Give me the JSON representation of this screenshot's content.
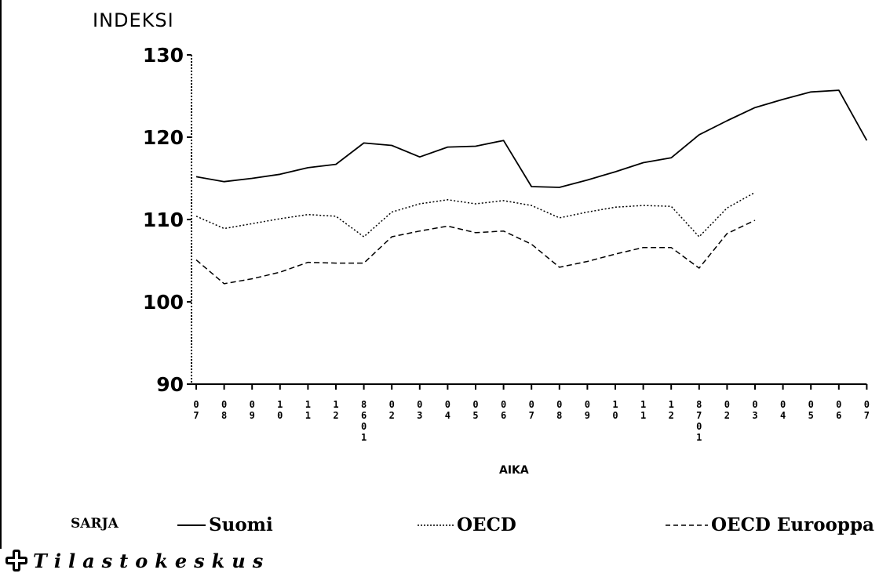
{
  "chart_data": {
    "type": "line",
    "ylabel": "INDEKSI",
    "xlabel": "AIKA",
    "ylim": [
      90,
      130
    ],
    "yticks": [
      "90",
      "100",
      "110",
      "120",
      "130"
    ],
    "categories": [
      [
        "0",
        "7"
      ],
      [
        "0",
        "8"
      ],
      [
        "0",
        "9"
      ],
      [
        "1",
        "0"
      ],
      [
        "1",
        "1"
      ],
      [
        "1",
        "2"
      ],
      [
        "8",
        "6",
        "0",
        "1"
      ],
      [
        "0",
        "2"
      ],
      [
        "0",
        "3"
      ],
      [
        "0",
        "4"
      ],
      [
        "0",
        "5"
      ],
      [
        "0",
        "6"
      ],
      [
        "0",
        "7"
      ],
      [
        "0",
        "8"
      ],
      [
        "0",
        "9"
      ],
      [
        "1",
        "0"
      ],
      [
        "1",
        "1"
      ],
      [
        "1",
        "2"
      ],
      [
        "8",
        "7",
        "0",
        "1"
      ],
      [
        "0",
        "2"
      ],
      [
        "0",
        "3"
      ],
      [
        "0",
        "4"
      ],
      [
        "0",
        "5"
      ],
      [
        "0",
        "6"
      ],
      [
        "0",
        "7"
      ]
    ],
    "series": [
      {
        "name": "Suomi",
        "style": "solid",
        "values": [
          115.2,
          114.6,
          115.0,
          115.5,
          116.3,
          116.7,
          119.3,
          119.0,
          117.6,
          118.8,
          118.9,
          119.6,
          114.0,
          113.9,
          114.8,
          115.8,
          116.9,
          117.5,
          120.3,
          122.0,
          123.6,
          124.6,
          125.5,
          125.7,
          119.6
        ]
      },
      {
        "name": "OECD",
        "style": "dotted",
        "values": [
          110.4,
          108.9,
          109.5,
          110.1,
          110.6,
          110.4,
          107.9,
          110.9,
          111.9,
          112.4,
          111.9,
          112.3,
          111.7,
          110.2,
          110.9,
          111.5,
          111.7,
          111.6,
          107.9,
          111.4,
          113.3,
          null,
          null,
          null,
          null
        ]
      },
      {
        "name": "OECD Eurooppa",
        "style": "dashed",
        "values": [
          105.1,
          102.2,
          102.8,
          103.6,
          104.8,
          104.7,
          104.7,
          107.9,
          108.6,
          109.2,
          108.4,
          108.6,
          107.0,
          104.2,
          104.9,
          105.8,
          106.6,
          106.6,
          104.1,
          108.3,
          109.9,
          null,
          null,
          null,
          null
        ]
      }
    ],
    "legend": {
      "title": "SARJA",
      "placement": "bottom"
    }
  },
  "footer": {
    "brand": "Tilastokeskus",
    "logo_icon": "tilastokeskus-logo-icon"
  },
  "colors": {
    "ink": "#000000",
    "background": "#ffffff"
  }
}
